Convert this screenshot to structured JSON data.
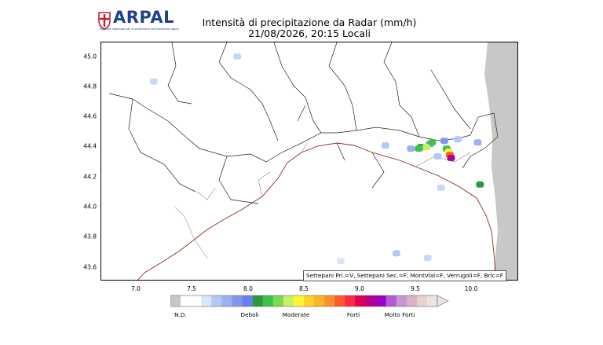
{
  "logo": {
    "name": "ARPAL",
    "tagline": "Agenzia regionale per la protezione dell'ambiente ligure"
  },
  "title": {
    "line1": "Intensità di precipitazione da Radar (mm/h)",
    "line2": "21/08/2026, 20:15 Locali"
  },
  "map": {
    "y_ticks": [
      "45.0",
      "44.8",
      "44.6",
      "44.4",
      "44.2",
      "44.0",
      "43.8",
      "43.6"
    ],
    "x_ticks": [
      "7.0",
      "7.5",
      "8.0",
      "8.5",
      "9.0",
      "9.5",
      "10.0"
    ],
    "lon_range": [
      6.7,
      10.45
    ],
    "lat_range": [
      43.52,
      45.05
    ],
    "no_data_color": "#c8c8c8"
  },
  "status_text": "Settepani Pri.=V, Settepani Sec.=F, MontVial=F, Verrugoli=F, Bric=F",
  "colorbar": {
    "colors": [
      "#c8c8c8",
      "#ffffff",
      "#ffffff",
      "#dce6fa",
      "#b4c8f8",
      "#9cb0f4",
      "#8296f0",
      "#6e7cf0",
      "#2a9a3c",
      "#3fc24a",
      "#7ed850",
      "#c8f064",
      "#fff632",
      "#ffd22a",
      "#ffb428",
      "#ff8c32",
      "#ff5a2c",
      "#ff2846",
      "#dc0050",
      "#b40090",
      "#9600c8",
      "#b45ad2",
      "#c896d2",
      "#d6b4c4",
      "#e6d2cc",
      "#eae4e2"
    ],
    "labels": [
      "N.D.",
      "Deboli",
      "Moderate",
      "Forti",
      "Molto Forti"
    ]
  },
  "precip_cells": [
    {
      "lon": 9.65,
      "lat": 44.4,
      "color": "#7b8cf0"
    },
    {
      "lon": 9.78,
      "lat": 44.42,
      "color": "#8296f0"
    },
    {
      "lon": 9.48,
      "lat": 44.37,
      "color": "#9cb0f4"
    },
    {
      "lon": 9.57,
      "lat": 44.38,
      "color": "#2a9a3c"
    },
    {
      "lon": 9.62,
      "lat": 44.38,
      "color": "#c8f064"
    },
    {
      "lon": 9.67,
      "lat": 44.41,
      "color": "#3fc24a"
    },
    {
      "lon": 9.8,
      "lat": 44.37,
      "color": "#3fc24a"
    },
    {
      "lon": 9.82,
      "lat": 44.35,
      "color": "#fff632"
    },
    {
      "lon": 9.83,
      "lat": 44.33,
      "color": "#ff5a2c"
    },
    {
      "lon": 9.84,
      "lat": 44.31,
      "color": "#b40090"
    },
    {
      "lon": 9.55,
      "lat": 44.37,
      "color": "#3fc24a"
    },
    {
      "lon": 9.9,
      "lat": 44.43,
      "color": "#b4c8f8"
    },
    {
      "lon": 9.72,
      "lat": 44.32,
      "color": "#b4c8f8"
    },
    {
      "lon": 9.25,
      "lat": 44.39,
      "color": "#b4c8f8"
    },
    {
      "lon": 10.08,
      "lat": 44.41,
      "color": "#9cb0f4"
    },
    {
      "lon": 9.75,
      "lat": 44.12,
      "color": "#c8d6fa"
    },
    {
      "lon": 10.1,
      "lat": 44.14,
      "color": "#2a9a3c"
    },
    {
      "lon": 7.92,
      "lat": 44.96,
      "color": "#c8d6fa"
    },
    {
      "lon": 7.17,
      "lat": 44.8,
      "color": "#c8d6fa"
    },
    {
      "lon": 9.35,
      "lat": 43.7,
      "color": "#b4c8f8"
    },
    {
      "lon": 9.63,
      "lat": 43.67,
      "color": "#c8d6fa"
    },
    {
      "lon": 8.85,
      "lat": 43.65,
      "color": "#dce6fa"
    }
  ]
}
